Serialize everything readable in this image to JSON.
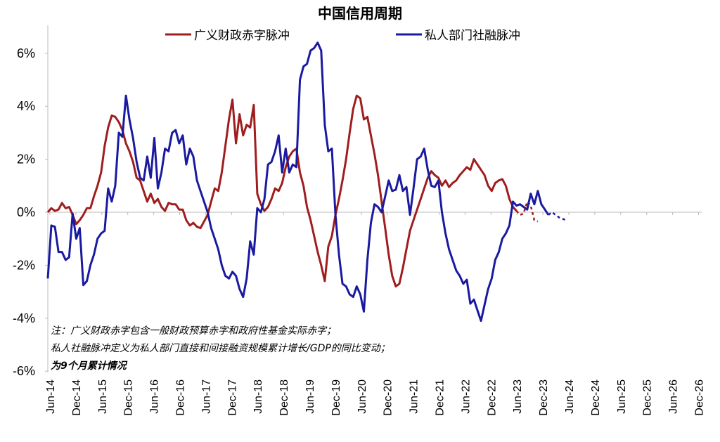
{
  "chart_data": {
    "type": "line",
    "title": "中国信用周期",
    "xlabel": "",
    "ylabel": "",
    "ylim": [
      -6,
      7
    ],
    "yticks": [
      "6%",
      "4%",
      "2%",
      "0%",
      "-2%",
      "-4%",
      "-6%"
    ],
    "xtick_labels": [
      "Jun-14",
      "Dec-14",
      "Jun-15",
      "Dec-15",
      "Jun-16",
      "Dec-16",
      "Jun-17",
      "Dec-17",
      "Jun-18",
      "Dec-18",
      "Jun-19",
      "Dec-19",
      "Jun-20",
      "Dec-20",
      "Jun-21",
      "Dec-21",
      "Jun-22",
      "Dec-22",
      "Jun-23",
      "Dec-23",
      "Jun-24",
      "Dec-24",
      "Jun-25",
      "Dec-25",
      "Jun-26",
      "Dec-26"
    ],
    "legend_position": "top",
    "grid": false,
    "series": [
      {
        "name": "广义财政赤字脉冲",
        "color": "#a01d1d",
        "points": [
          [
            "2014-06",
            0.0
          ],
          [
            "2014-07",
            0.15
          ],
          [
            "2014-08",
            0.05
          ],
          [
            "2014-09",
            0.1
          ],
          [
            "2014-10",
            0.35
          ],
          [
            "2014-11",
            0.15
          ],
          [
            "2014-12",
            0.2
          ],
          [
            "2015-01",
            -0.1
          ],
          [
            "2015-02",
            -0.45
          ],
          [
            "2015-03",
            -0.3
          ],
          [
            "2015-04",
            -0.1
          ],
          [
            "2015-05",
            0.15
          ],
          [
            "2015-06",
            0.15
          ],
          [
            "2015-07",
            0.6
          ],
          [
            "2015-08",
            1.0
          ],
          [
            "2015-09",
            1.5
          ],
          [
            "2015-10",
            2.5
          ],
          [
            "2015-11",
            3.2
          ],
          [
            "2015-12",
            3.65
          ],
          [
            "2016-01",
            3.6
          ],
          [
            "2016-02",
            3.4
          ],
          [
            "2016-03",
            3.1
          ],
          [
            "2016-04",
            2.6
          ],
          [
            "2016-05",
            2.3
          ],
          [
            "2016-06",
            1.9
          ],
          [
            "2016-07",
            1.3
          ],
          [
            "2016-08",
            1.2
          ],
          [
            "2016-09",
            0.8
          ],
          [
            "2016-10",
            0.4
          ],
          [
            "2016-11",
            0.7
          ],
          [
            "2016-12",
            0.35
          ],
          [
            "2017-01",
            0.5
          ],
          [
            "2017-02",
            0.2
          ],
          [
            "2017-03",
            0.05
          ],
          [
            "2017-04",
            0.35
          ],
          [
            "2017-05",
            0.3
          ],
          [
            "2017-06",
            0.3
          ],
          [
            "2017-07",
            0.1
          ],
          [
            "2017-08",
            0.1
          ],
          [
            "2017-09",
            -0.3
          ],
          [
            "2017-10",
            -0.5
          ],
          [
            "2017-11",
            -0.4
          ],
          [
            "2017-12",
            -0.55
          ],
          [
            "2018-01",
            -0.6
          ],
          [
            "2018-02",
            -0.35
          ],
          [
            "2018-03",
            -0.1
          ],
          [
            "2018-04",
            0.4
          ],
          [
            "2018-05",
            0.9
          ],
          [
            "2018-06",
            0.8
          ],
          [
            "2018-07",
            1.5
          ],
          [
            "2018-08",
            2.5
          ],
          [
            "2018-09",
            3.5
          ],
          [
            "2018-10",
            4.25
          ],
          [
            "2018-11",
            2.6
          ],
          [
            "2018-12",
            3.7
          ],
          [
            "2019-01",
            2.9
          ],
          [
            "2019-02",
            3.3
          ],
          [
            "2019-03",
            3.2
          ],
          [
            "2019-04",
            4.05
          ],
          [
            "2019-05",
            0.7
          ],
          [
            "2019-06",
            0.3
          ],
          [
            "2019-07",
            0.05
          ],
          [
            "2019-08",
            0.2
          ],
          [
            "2019-09",
            0.5
          ],
          [
            "2019-10",
            0.9
          ],
          [
            "2019-11",
            0.8
          ],
          [
            "2019-12",
            1.1
          ],
          [
            "2020-01",
            1.7
          ],
          [
            "2020-02",
            2.1
          ],
          [
            "2020-03",
            2.3
          ],
          [
            "2020-04",
            2.4
          ],
          [
            "2020-05",
            1.5
          ],
          [
            "2020-06",
            1.0
          ],
          [
            "2020-07",
            0.2
          ],
          [
            "2020-08",
            -0.3
          ],
          [
            "2020-09",
            -0.9
          ],
          [
            "2020-10",
            -1.5
          ],
          [
            "2020-11",
            -2.0
          ],
          [
            "2020-12",
            -2.6
          ],
          [
            "2021-01",
            -1.3
          ],
          [
            "2021-02",
            -0.9
          ],
          [
            "2021-03",
            -0.1
          ],
          [
            "2021-04",
            0.5
          ],
          [
            "2021-05",
            1.2
          ],
          [
            "2021-06",
            2.0
          ],
          [
            "2021-07",
            3.0
          ],
          [
            "2021-08",
            3.9
          ],
          [
            "2021-09",
            4.4
          ],
          [
            "2021-10",
            4.3
          ],
          [
            "2021-11",
            3.5
          ],
          [
            "2021-12",
            3.6
          ],
          [
            "2022-01",
            2.9
          ],
          [
            "2022-02",
            2.2
          ],
          [
            "2022-03",
            1.4
          ],
          [
            "2022-04",
            0.4
          ],
          [
            "2022-05",
            -0.6
          ],
          [
            "2022-06",
            -1.6
          ],
          [
            "2022-07",
            -2.4
          ],
          [
            "2022-08",
            -2.8
          ],
          [
            "2022-09",
            -2.7
          ],
          [
            "2022-10",
            -2.1
          ],
          [
            "2022-11",
            -1.4
          ],
          [
            "2022-12",
            -0.7
          ],
          [
            "2023-01",
            -0.3
          ],
          [
            "2023-02",
            0.1
          ],
          [
            "2023-03",
            0.5
          ],
          [
            "2023-04",
            0.9
          ],
          [
            "2023-05",
            1.3
          ],
          [
            "2023-06",
            1.55
          ],
          [
            "2023-07",
            1.4
          ],
          [
            "2023-08",
            1.3
          ],
          [
            "2023-09",
            1.0
          ],
          [
            "2023-10",
            1.2
          ],
          [
            "2023-11",
            0.95
          ],
          [
            "2023-12",
            1.1
          ],
          [
            "2024-01",
            1.2
          ],
          [
            "2024-02",
            1.4
          ],
          [
            "2024-03",
            1.55
          ],
          [
            "2024-04",
            1.7
          ],
          [
            "2024-05",
            1.6
          ],
          [
            "2024-06",
            2.0
          ],
          [
            "2024-07",
            1.8
          ],
          [
            "2024-08",
            1.6
          ],
          [
            "2024-09",
            1.4
          ],
          [
            "2024-10",
            1.0
          ],
          [
            "2024-11",
            0.8
          ],
          [
            "2024-12",
            1.1
          ],
          [
            "2025-01",
            1.2
          ],
          [
            "2025-02",
            1.25
          ],
          [
            "2025-03",
            1.0
          ],
          [
            "2025-04",
            0.5
          ],
          [
            "2025-05",
            0.2
          ],
          [
            "2025-06",
            0.05
          ]
        ],
        "forecast": [
          [
            "2025-06",
            0.05
          ],
          [
            "2025-07",
            -0.1
          ],
          [
            "2025-08",
            -0.05
          ],
          [
            "2025-09",
            0.4
          ],
          [
            "2025-10",
            0.25
          ],
          [
            "2025-11",
            -0.3
          ],
          [
            "2025-12",
            -0.35
          ]
        ]
      },
      {
        "name": "私人部门社融脉冲",
        "color": "#1a1aa0",
        "points": [
          [
            "2014-06",
            -2.5
          ],
          [
            "2014-07",
            -0.5
          ],
          [
            "2014-08",
            -0.55
          ],
          [
            "2014-09",
            -1.5
          ],
          [
            "2014-10",
            -1.5
          ],
          [
            "2014-11",
            -1.8
          ],
          [
            "2014-12",
            -1.7
          ],
          [
            "2015-01",
            -0.05
          ],
          [
            "2015-02",
            -1.0
          ],
          [
            "2015-03",
            -0.6
          ],
          [
            "2015-04",
            -2.75
          ],
          [
            "2015-05",
            -2.6
          ],
          [
            "2015-06",
            -2.0
          ],
          [
            "2015-07",
            -1.6
          ],
          [
            "2015-08",
            -1.0
          ],
          [
            "2015-09",
            -0.8
          ],
          [
            "2015-10",
            -0.7
          ],
          [
            "2015-11",
            0.9
          ],
          [
            "2015-12",
            0.4
          ],
          [
            "2016-01",
            1.0
          ],
          [
            "2016-02",
            3.0
          ],
          [
            "2016-03",
            2.85
          ],
          [
            "2016-04",
            4.4
          ],
          [
            "2016-05",
            3.5
          ],
          [
            "2016-06",
            2.8
          ],
          [
            "2016-07",
            1.9
          ],
          [
            "2016-08",
            1.3
          ],
          [
            "2016-09",
            1.2
          ],
          [
            "2016-10",
            2.1
          ],
          [
            "2016-11",
            1.3
          ],
          [
            "2016-12",
            2.8
          ],
          [
            "2017-01",
            0.9
          ],
          [
            "2017-02",
            1.5
          ],
          [
            "2017-03",
            2.4
          ],
          [
            "2017-04",
            2.3
          ],
          [
            "2017-05",
            3.0
          ],
          [
            "2017-06",
            3.1
          ],
          [
            "2017-07",
            2.6
          ],
          [
            "2017-08",
            2.9
          ],
          [
            "2017-09",
            1.8
          ],
          [
            "2017-10",
            2.4
          ],
          [
            "2017-11",
            2.1
          ],
          [
            "2017-12",
            1.2
          ],
          [
            "2018-01",
            0.8
          ],
          [
            "2018-02",
            0.4
          ],
          [
            "2018-03",
            0.0
          ],
          [
            "2018-04",
            -0.6
          ],
          [
            "2018-05",
            -1.0
          ],
          [
            "2018-06",
            -1.4
          ],
          [
            "2018-07",
            -2.0
          ],
          [
            "2018-08",
            -2.4
          ],
          [
            "2018-09",
            -2.5
          ],
          [
            "2018-10",
            -2.25
          ],
          [
            "2018-11",
            -2.4
          ],
          [
            "2018-12",
            -2.9
          ],
          [
            "2019-01",
            -3.2
          ],
          [
            "2019-02",
            -2.5
          ],
          [
            "2019-03",
            -1.1
          ],
          [
            "2019-04",
            -1.6
          ],
          [
            "2019-05",
            0.15
          ],
          [
            "2019-06",
            0.0
          ],
          [
            "2019-07",
            0.5
          ],
          [
            "2019-08",
            1.8
          ],
          [
            "2019-09",
            1.9
          ],
          [
            "2019-10",
            2.3
          ],
          [
            "2019-11",
            2.9
          ],
          [
            "2019-12",
            1.5
          ],
          [
            "2020-01",
            2.4
          ],
          [
            "2020-02",
            1.5
          ],
          [
            "2020-03",
            1.8
          ],
          [
            "2020-04",
            1.7
          ],
          [
            "2020-05",
            5.0
          ],
          [
            "2020-06",
            5.5
          ],
          [
            "2020-07",
            5.6
          ],
          [
            "2020-08",
            6.1
          ],
          [
            "2020-09",
            6.2
          ],
          [
            "2020-10",
            6.4
          ],
          [
            "2020-11",
            6.1
          ],
          [
            "2020-12",
            3.3
          ],
          [
            "2021-01",
            2.3
          ],
          [
            "2021-02",
            2.4
          ],
          [
            "2021-03",
            -0.1
          ],
          [
            "2021-04",
            -1.6
          ],
          [
            "2021-05",
            -2.7
          ],
          [
            "2021-06",
            -2.8
          ],
          [
            "2021-07",
            -3.1
          ],
          [
            "2021-08",
            -3.2
          ],
          [
            "2021-09",
            -2.8
          ],
          [
            "2021-10",
            -3.1
          ],
          [
            "2021-11",
            -3.75
          ],
          [
            "2021-12",
            -1.8
          ],
          [
            "2022-01",
            -0.4
          ],
          [
            "2022-02",
            0.3
          ],
          [
            "2022-03",
            0.2
          ],
          [
            "2022-04",
            0.0
          ],
          [
            "2022-05",
            0.6
          ],
          [
            "2022-06",
            1.2
          ],
          [
            "2022-07",
            0.8
          ],
          [
            "2022-08",
            0.85
          ],
          [
            "2022-09",
            1.4
          ],
          [
            "2022-10",
            0.8
          ],
          [
            "2022-11",
            0.95
          ],
          [
            "2022-12",
            -0.1
          ],
          [
            "2023-01",
            0.9
          ],
          [
            "2023-02",
            2.0
          ],
          [
            "2023-03",
            2.1
          ],
          [
            "2023-04",
            2.4
          ],
          [
            "2023-05",
            1.6
          ],
          [
            "2023-06",
            1.0
          ],
          [
            "2023-07",
            0.95
          ],
          [
            "2023-08",
            1.2
          ],
          [
            "2023-09",
            0.0
          ],
          [
            "2023-10",
            -0.8
          ],
          [
            "2023-11",
            -1.4
          ],
          [
            "2023-12",
            -1.8
          ],
          [
            "2024-01",
            -2.2
          ],
          [
            "2024-02",
            -2.4
          ],
          [
            "2024-03",
            -2.7
          ],
          [
            "2024-04",
            -2.55
          ],
          [
            "2024-05",
            -3.45
          ],
          [
            "2024-06",
            -3.3
          ],
          [
            "2024-07",
            -3.7
          ],
          [
            "2024-08",
            -4.1
          ],
          [
            "2024-09",
            -3.5
          ],
          [
            "2024-10",
            -2.9
          ],
          [
            "2024-11",
            -2.5
          ],
          [
            "2024-12",
            -1.8
          ],
          [
            "2025-01",
            -1.5
          ],
          [
            "2025-02",
            -1.0
          ],
          [
            "2025-03",
            -0.8
          ],
          [
            "2025-04",
            -0.5
          ],
          [
            "2025-05",
            0.4
          ],
          [
            "2025-06",
            0.25
          ],
          [
            "2025-07",
            0.3
          ],
          [
            "2025-08",
            0.2
          ],
          [
            "2025-09",
            0.1
          ],
          [
            "2025-10",
            0.7
          ],
          [
            "2025-11",
            0.3
          ],
          [
            "2025-12",
            0.8
          ],
          [
            "2026-01",
            0.3
          ],
          [
            "2026-02",
            0.1
          ],
          [
            "2026-03",
            -0.1
          ]
        ],
        "forecast": [
          [
            "2026-03",
            -0.1
          ],
          [
            "2026-04",
            0.0
          ],
          [
            "2026-05",
            -0.1
          ],
          [
            "2026-06",
            -0.2
          ],
          [
            "2026-07",
            -0.25
          ],
          [
            "2026-08",
            -0.3
          ]
        ]
      }
    ],
    "notes": [
      "注：广义财政赤字包含一般财政预算赤字和政府性基金实际赤字；",
      "私人社融脉冲定义为私人部门直接和间接融资规模累计增长/GDP的同比变动；",
      "为9个月累计情况"
    ]
  }
}
